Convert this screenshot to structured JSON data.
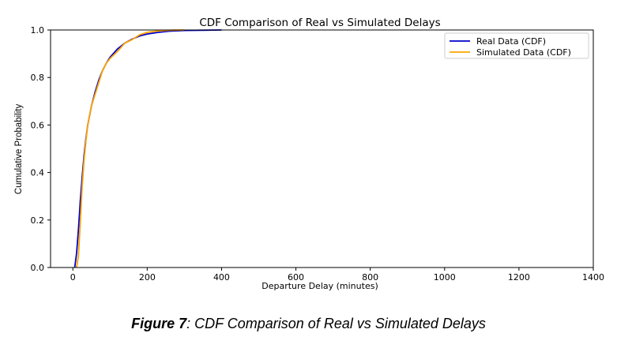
{
  "chart_data": {
    "type": "line",
    "title": "CDF Comparison of Real vs Simulated Delays",
    "xlabel": "Departure Delay (minutes)",
    "ylabel": "Cumulative Probability",
    "xlim": [
      -60,
      1400
    ],
    "ylim": [
      0,
      1.0
    ],
    "xticks": [
      0,
      200,
      400,
      600,
      800,
      1000,
      1200,
      1400
    ],
    "yticks": [
      0.0,
      0.2,
      0.4,
      0.6,
      0.8,
      1.0
    ],
    "xtick_labels": [
      "0",
      "200",
      "400",
      "600",
      "800",
      "1000",
      "1200",
      "1400"
    ],
    "ytick_labels": [
      "0.0",
      "0.2",
      "0.4",
      "0.6",
      "0.8",
      "1.0"
    ],
    "grid": false,
    "legend_position": "top-right",
    "series": [
      {
        "name": "Real Data (CDF)",
        "color": "#0000cc",
        "x": [
          5,
          10,
          15,
          20,
          25,
          30,
          35,
          40,
          50,
          60,
          70,
          80,
          90,
          100,
          120,
          140,
          160,
          180,
          200,
          230,
          260,
          300,
          350,
          400
        ],
        "y": [
          0.0,
          0.06,
          0.16,
          0.28,
          0.38,
          0.47,
          0.54,
          0.6,
          0.68,
          0.74,
          0.79,
          0.83,
          0.86,
          0.885,
          0.92,
          0.945,
          0.962,
          0.975,
          0.983,
          0.99,
          0.995,
          0.998,
          0.999,
          1.0
        ]
      },
      {
        "name": "Simulated Data (CDF)",
        "color": "#ffa500",
        "x": [
          10,
          15,
          20,
          25,
          30,
          35,
          40,
          50,
          60,
          70,
          80,
          90,
          100,
          120,
          140,
          160,
          180,
          200,
          230,
          260,
          300
        ],
        "y": [
          0.0,
          0.05,
          0.19,
          0.34,
          0.45,
          0.53,
          0.6,
          0.68,
          0.73,
          0.78,
          0.83,
          0.86,
          0.88,
          0.91,
          0.945,
          0.96,
          0.98,
          0.99,
          0.996,
          0.999,
          1.0
        ]
      }
    ]
  },
  "caption": {
    "label": "Figure 7",
    "text": ": CDF Comparison of Real vs Simulated Delays"
  }
}
